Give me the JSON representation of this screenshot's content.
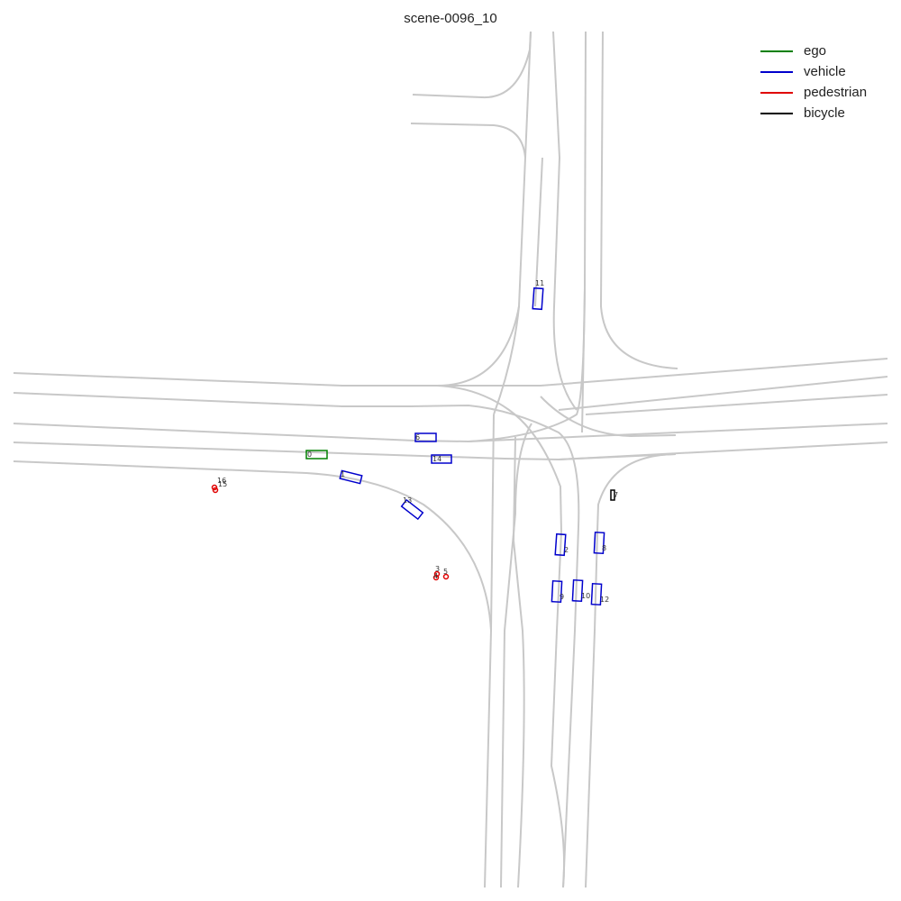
{
  "title": "scene-0096_10",
  "legend": [
    {
      "label": "ego",
      "color": "#008000"
    },
    {
      "label": "vehicle",
      "color": "#0000cc"
    },
    {
      "label": "pedestrian",
      "color": "#e00000"
    },
    {
      "label": "bicycle",
      "color": "#000000"
    }
  ],
  "agents": [
    {
      "id": "0",
      "type": "ego"
    },
    {
      "id": "1",
      "type": "vehicle"
    },
    {
      "id": "2",
      "type": "vehicle"
    },
    {
      "id": "3",
      "type": "pedestrian"
    },
    {
      "id": "4",
      "type": "pedestrian"
    },
    {
      "id": "5",
      "type": "pedestrian"
    },
    {
      "id": "6",
      "type": "vehicle"
    },
    {
      "id": "7",
      "type": "bicycle"
    },
    {
      "id": "8",
      "type": "vehicle"
    },
    {
      "id": "9",
      "type": "vehicle"
    },
    {
      "id": "10",
      "type": "vehicle"
    },
    {
      "id": "11",
      "type": "vehicle"
    },
    {
      "id": "12",
      "type": "vehicle"
    },
    {
      "id": "13",
      "type": "vehicle"
    },
    {
      "id": "14",
      "type": "vehicle"
    },
    {
      "id": "15",
      "type": "pedestrian"
    },
    {
      "id": "16",
      "type": "pedestrian"
    }
  ]
}
